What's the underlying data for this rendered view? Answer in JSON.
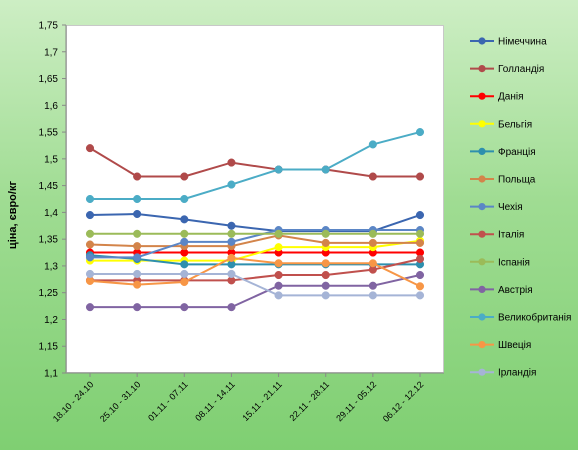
{
  "chart_data": {
    "type": "line",
    "title": "",
    "ylabel": "ціна, євро/кг",
    "xlabel": "",
    "ylim": [
      1.1,
      1.75
    ],
    "ytick_step": 0.05,
    "y_tick_labels": [
      "1,1",
      "1,15",
      "1,2",
      "1,25",
      "1,3",
      "1,35",
      "1,4",
      "1,45",
      "1,5",
      "1,55",
      "1,6",
      "1,65",
      "1,7",
      "1,75"
    ],
    "categories": [
      "18.10 - 24.10",
      "25.10 - 31.10",
      "01.11 - 07.11",
      "08.11 - 14.11",
      "15.11 - 21.11",
      "22.11 - 28.11",
      "29.11 - 05.12",
      "06.12 - 12.12"
    ],
    "grid": "none",
    "legend_position": "right",
    "series": [
      {
        "name": "Німеччина",
        "color": "#3b66b0",
        "values": [
          1.395,
          1.397,
          1.387,
          1.375,
          1.365,
          1.365,
          1.365,
          1.395
        ]
      },
      {
        "name": "Голландія",
        "color": "#b04a4a",
        "values": [
          1.52,
          1.467,
          1.467,
          1.493,
          1.48,
          1.48,
          1.467,
          1.467
        ]
      },
      {
        "name": "Данія",
        "color": "#ff0000",
        "values": [
          1.325,
          1.325,
          1.325,
          1.325,
          1.325,
          1.325,
          1.325,
          1.325
        ]
      },
      {
        "name": "Бельгія",
        "color": "#ffff00",
        "values": [
          1.31,
          1.31,
          1.31,
          1.31,
          1.335,
          1.335,
          1.335,
          1.347
        ]
      },
      {
        "name": "Франція",
        "color": "#2e8fae",
        "values": [
          1.32,
          1.313,
          1.303,
          1.303,
          1.303,
          1.303,
          1.303,
          1.303
        ]
      },
      {
        "name": "Польща",
        "color": "#d3844a",
        "values": [
          1.34,
          1.337,
          1.337,
          1.337,
          1.357,
          1.343,
          1.343,
          1.343
        ]
      },
      {
        "name": "Чехія",
        "color": "#5b86c6",
        "values": [
          1.316,
          1.316,
          1.345,
          1.345,
          1.367,
          1.367,
          1.367,
          1.367
        ]
      },
      {
        "name": "Італія",
        "color": "#c0504d",
        "values": [
          1.273,
          1.273,
          1.273,
          1.273,
          1.283,
          1.283,
          1.293,
          1.313
        ]
      },
      {
        "name": "Іспанія",
        "color": "#9bbb59",
        "values": [
          1.36,
          1.36,
          1.36,
          1.36,
          1.36,
          1.36,
          1.36,
          1.36
        ]
      },
      {
        "name": "Австрія",
        "color": "#8064a2",
        "values": [
          1.223,
          1.223,
          1.223,
          1.223,
          1.263,
          1.263,
          1.263,
          1.283
        ]
      },
      {
        "name": "Великобританія",
        "color": "#4bacc6",
        "values": [
          1.425,
          1.425,
          1.425,
          1.452,
          1.48,
          1.48,
          1.527,
          1.55
        ]
      },
      {
        "name": "Швеція",
        "color": "#f79646",
        "values": [
          1.272,
          1.265,
          1.27,
          1.315,
          1.305,
          1.305,
          1.305,
          1.262
        ]
      },
      {
        "name": "Ірландія",
        "color": "#a5b4d6",
        "values": [
          1.285,
          1.285,
          1.285,
          1.285,
          1.245,
          1.245,
          1.245,
          1.245
        ]
      }
    ]
  }
}
